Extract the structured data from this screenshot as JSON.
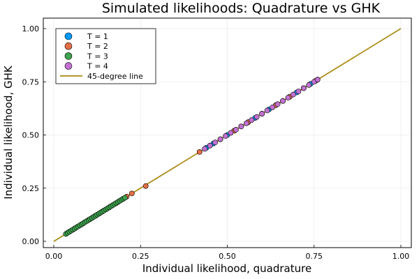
{
  "chart_data": {
    "type": "scatter",
    "title": "Simulated likelihoods: Quadrature vs GHK",
    "xlabel": "Individual likelihood, quadrature",
    "ylabel": "Individual likelihood, GHK",
    "xlim": [
      0,
      1
    ],
    "ylim": [
      0,
      1
    ],
    "xticks": [
      0.0,
      0.25,
      0.5,
      0.75,
      1.0
    ],
    "yticks": [
      0.0,
      0.25,
      0.5,
      0.75,
      1.0
    ],
    "xtick_labels": [
      "0.00",
      "0.25",
      "0.50",
      "0.75",
      "1.00"
    ],
    "ytick_labels": [
      "0.00",
      "0.25",
      "0.50",
      "0.75",
      "1.00"
    ],
    "grid": true,
    "legend_position": "top-left",
    "series": [
      {
        "name": "T = 1",
        "kind": "scatter",
        "color": "#009AFA",
        "x": [
          0.44,
          0.46,
          0.48,
          0.5,
          0.52,
          0.54,
          0.56,
          0.58,
          0.6,
          0.62,
          0.64,
          0.66,
          0.68,
          0.7,
          0.72,
          0.74,
          0.76
        ],
        "y": [
          0.44,
          0.46,
          0.48,
          0.5,
          0.52,
          0.54,
          0.56,
          0.58,
          0.6,
          0.62,
          0.64,
          0.66,
          0.68,
          0.7,
          0.72,
          0.74,
          0.76
        ]
      },
      {
        "name": "T = 2",
        "kind": "scatter",
        "color": "#E36F47",
        "x": [
          0.045,
          0.06,
          0.08,
          0.1,
          0.12,
          0.14,
          0.16,
          0.18,
          0.2,
          0.21,
          0.225,
          0.265,
          0.42,
          0.45,
          0.48,
          0.52,
          0.56,
          0.6,
          0.64,
          0.68,
          0.72,
          0.755
        ],
        "y": [
          0.045,
          0.06,
          0.08,
          0.1,
          0.12,
          0.14,
          0.16,
          0.18,
          0.2,
          0.21,
          0.225,
          0.26,
          0.42,
          0.45,
          0.48,
          0.52,
          0.56,
          0.6,
          0.64,
          0.68,
          0.72,
          0.755
        ]
      },
      {
        "name": "T = 3",
        "kind": "scatter",
        "color": "#3EA44E",
        "x": [
          0.035,
          0.04,
          0.045,
          0.05,
          0.055,
          0.06,
          0.065,
          0.07,
          0.075,
          0.08,
          0.085,
          0.09,
          0.095,
          0.1,
          0.105,
          0.11,
          0.115,
          0.12,
          0.125,
          0.13,
          0.135,
          0.14,
          0.145,
          0.15,
          0.155,
          0.16,
          0.165,
          0.17,
          0.175,
          0.18,
          0.185,
          0.19,
          0.195,
          0.2,
          0.205
        ],
        "y": [
          0.035,
          0.04,
          0.045,
          0.05,
          0.055,
          0.06,
          0.065,
          0.07,
          0.075,
          0.08,
          0.085,
          0.09,
          0.095,
          0.1,
          0.105,
          0.11,
          0.115,
          0.12,
          0.125,
          0.13,
          0.135,
          0.14,
          0.145,
          0.15,
          0.155,
          0.16,
          0.165,
          0.17,
          0.175,
          0.18,
          0.185,
          0.19,
          0.195,
          0.2,
          0.205
        ]
      },
      {
        "name": "T = 4",
        "kind": "scatter",
        "color": "#C271D2",
        "x": [
          0.435,
          0.45,
          0.465,
          0.48,
          0.495,
          0.51,
          0.525,
          0.54,
          0.555,
          0.57,
          0.585,
          0.6,
          0.615,
          0.63,
          0.645,
          0.66,
          0.675,
          0.69,
          0.705,
          0.72,
          0.735,
          0.75,
          0.76
        ],
        "y": [
          0.435,
          0.45,
          0.465,
          0.48,
          0.495,
          0.51,
          0.525,
          0.54,
          0.555,
          0.57,
          0.585,
          0.6,
          0.615,
          0.63,
          0.645,
          0.66,
          0.675,
          0.69,
          0.705,
          0.72,
          0.735,
          0.75,
          0.76
        ]
      },
      {
        "name": "45-degree line",
        "kind": "line",
        "color": "#AC8D18",
        "x": [
          0,
          1
        ],
        "y": [
          0,
          1
        ]
      }
    ]
  }
}
